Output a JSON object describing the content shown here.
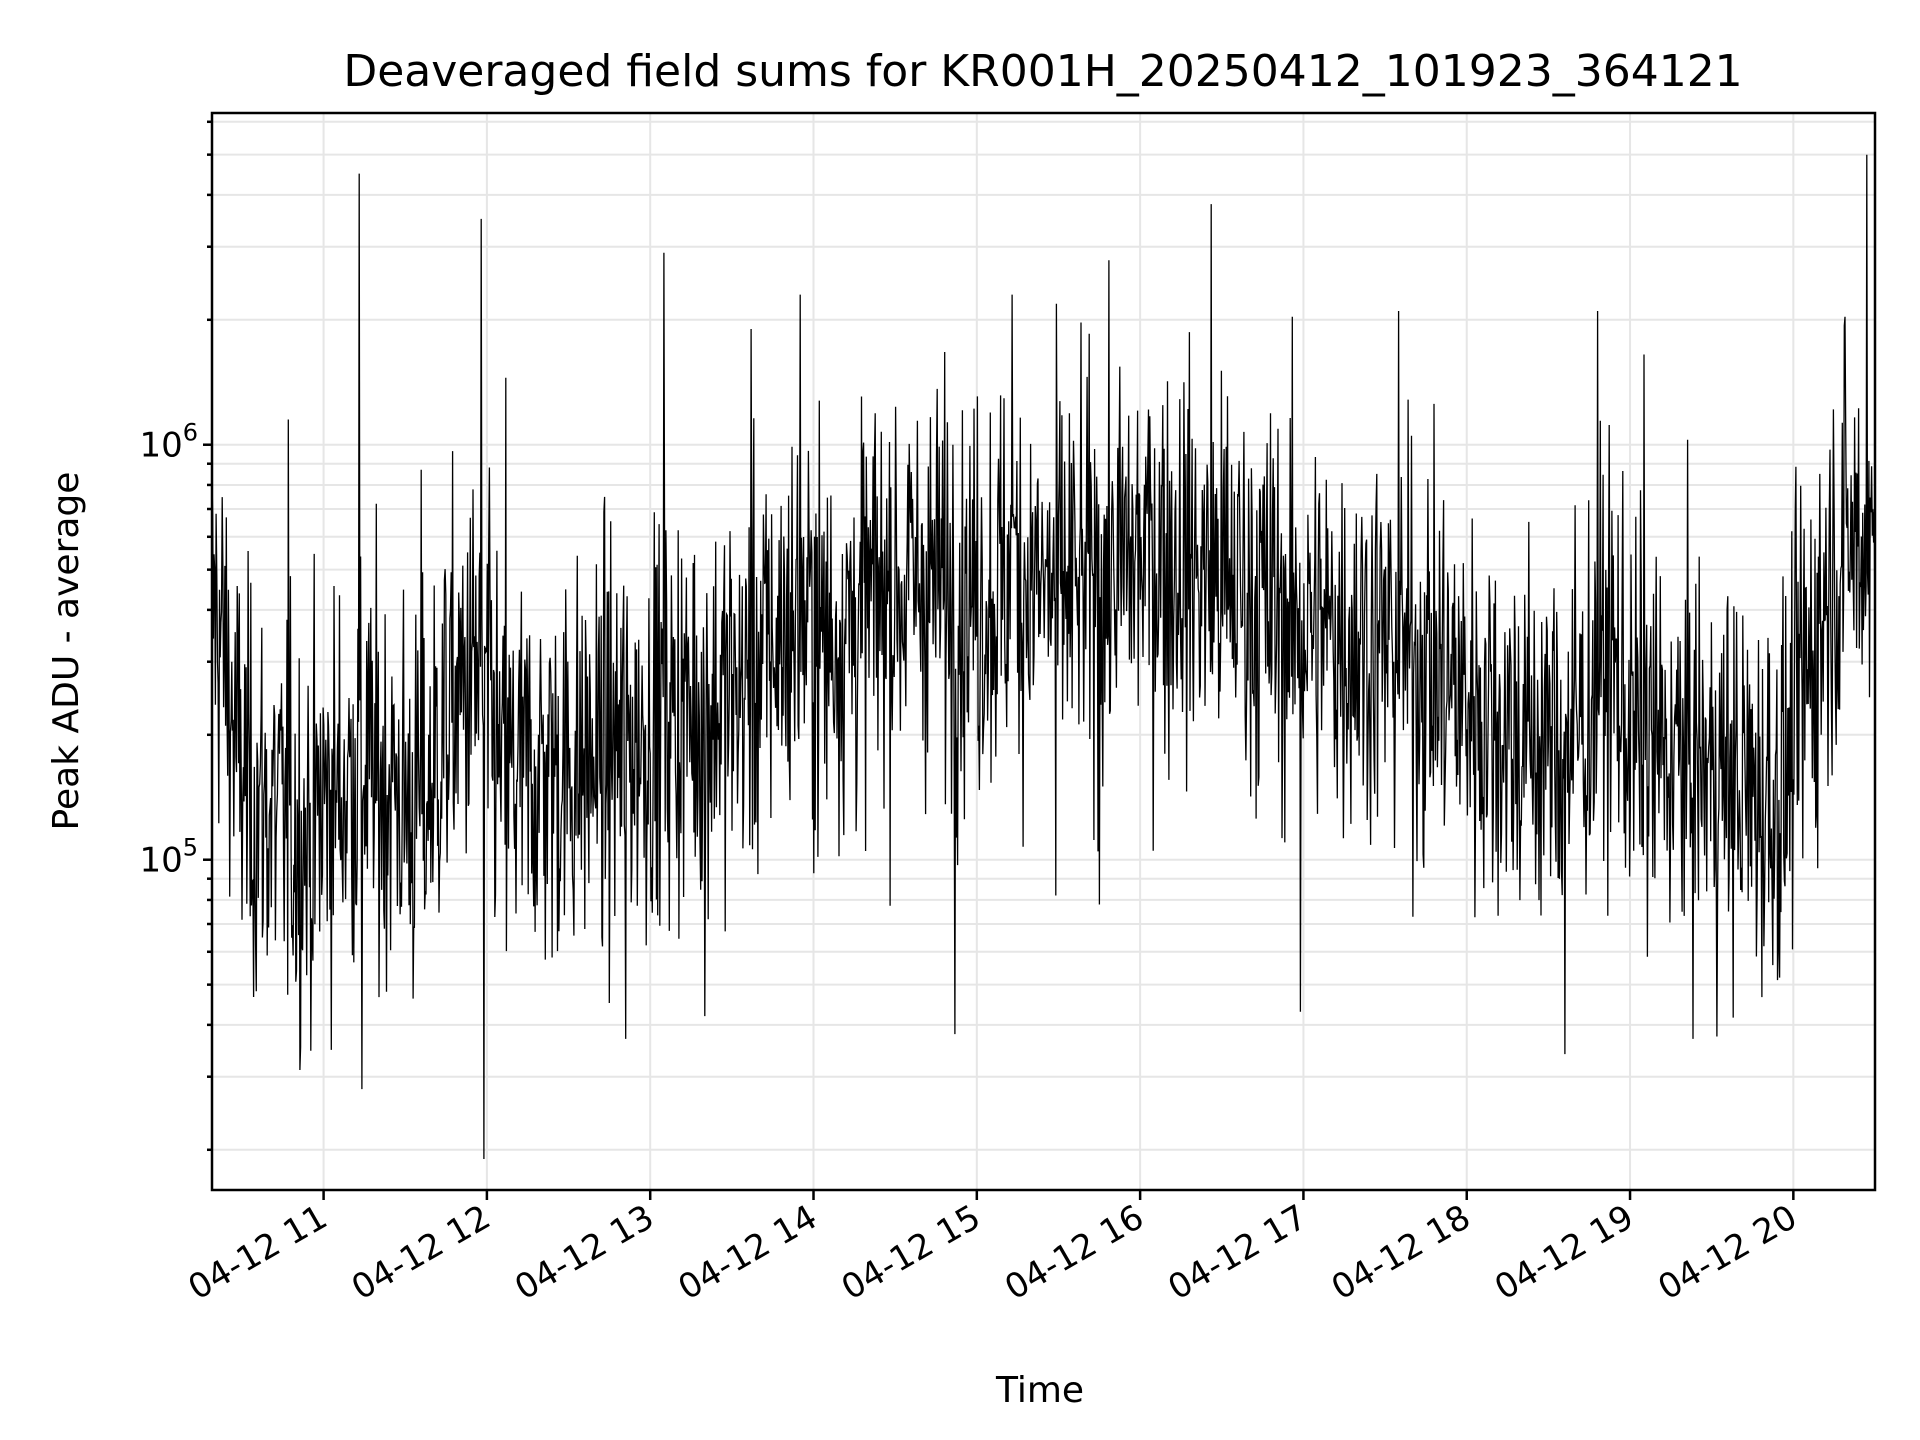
{
  "chart_data": {
    "type": "line",
    "title": "Deaveraged field sums for KR001H_20250412_101923_364121",
    "xlabel": "Time",
    "ylabel": "Peak ADU - average",
    "yscale": "log",
    "ylim": [
      16000,
      6300000
    ],
    "xlim": [
      "04-12 10:19",
      "04-12 20:30"
    ],
    "grid": true,
    "x_ticks": [
      "04-12 11",
      "04-12 12",
      "04-12 13",
      "04-12 14",
      "04-12 15",
      "04-12 16",
      "04-12 17",
      "04-12 18",
      "04-12 19",
      "04-12 20"
    ],
    "y_ticks": [
      {
        "base": "10",
        "exp": "5",
        "value": 100000
      },
      {
        "base": "10",
        "exp": "6",
        "value": 1000000
      }
    ],
    "series": [
      {
        "color": "#000000",
        "points": [
          [
            "04-12 10:20",
            400000
          ],
          [
            "04-12 10:24",
            300000
          ],
          [
            "04-12 10:28",
            180000
          ],
          [
            "04-12 10:33",
            140000
          ],
          [
            "04-12 10:40",
            130000
          ],
          [
            "04-12 10:48",
            120000
          ],
          [
            "04-12 10:55",
            110000
          ],
          [
            "04-12 11:00",
            140000
          ],
          [
            "04-12 11:08",
            150000
          ],
          [
            "04-12 11:14",
            175000
          ],
          [
            "04-12 11:20",
            155000
          ],
          [
            "04-12 11:26",
            150000
          ],
          [
            "04-12 11:32",
            130000
          ],
          [
            "04-12 11:38",
            140000
          ],
          [
            "04-12 11:45",
            220000
          ],
          [
            "04-12 11:52",
            260000
          ],
          [
            "04-12 11:58",
            300000
          ],
          [
            "04-12 12:05",
            160000
          ],
          [
            "04-12 12:15",
            160000
          ],
          [
            "04-12 12:25",
            165000
          ],
          [
            "04-12 12:35",
            170000
          ],
          [
            "04-12 12:45",
            185000
          ],
          [
            "04-12 12:55",
            195000
          ],
          [
            "04-12 13:05",
            220000
          ],
          [
            "04-12 13:15",
            230000
          ],
          [
            "04-12 13:25",
            240000
          ],
          [
            "04-12 13:35",
            260000
          ],
          [
            "04-12 13:45",
            330000
          ],
          [
            "04-12 13:55",
            380000
          ],
          [
            "04-12 14:05",
            340000
          ],
          [
            "04-12 14:15",
            380000
          ],
          [
            "04-12 14:25",
            440000
          ],
          [
            "04-12 14:35",
            460000
          ],
          [
            "04-12 14:45",
            470000
          ],
          [
            "04-12 14:55",
            430000
          ],
          [
            "04-12 15:05",
            440000
          ],
          [
            "04-12 15:15",
            480000
          ],
          [
            "04-12 15:25",
            450000
          ],
          [
            "04-12 15:35",
            450000
          ],
          [
            "04-12 15:45",
            470000
          ],
          [
            "04-12 15:55",
            520000
          ],
          [
            "04-12 16:05",
            560000
          ],
          [
            "04-12 16:15",
            520000
          ],
          [
            "04-12 16:25",
            480000
          ],
          [
            "04-12 16:35",
            460000
          ],
          [
            "04-12 16:45",
            420000
          ],
          [
            "04-12 16:55",
            380000
          ],
          [
            "04-12 17:05",
            360000
          ],
          [
            "04-12 17:15",
            350000
          ],
          [
            "04-12 17:25",
            340000
          ],
          [
            "04-12 17:35",
            320000
          ],
          [
            "04-12 17:45",
            300000
          ],
          [
            "04-12 17:55",
            260000
          ],
          [
            "04-12 18:05",
            230000
          ],
          [
            "04-12 18:15",
            210000
          ],
          [
            "04-12 18:25",
            190000
          ],
          [
            "04-12 18:35",
            185000
          ],
          [
            "04-12 18:45",
            230000
          ],
          [
            "04-12 18:52",
            320000
          ],
          [
            "04-12 19:00",
            210000
          ],
          [
            "04-12 19:10",
            180000
          ],
          [
            "04-12 19:20",
            175000
          ],
          [
            "04-12 19:30",
            165000
          ],
          [
            "04-12 19:40",
            150000
          ],
          [
            "04-12 19:50",
            140000
          ],
          [
            "04-12 19:57",
            150000
          ],
          [
            "04-12 20:03",
            260000
          ],
          [
            "04-12 20:08",
            320000
          ],
          [
            "04-12 20:13",
            480000
          ],
          [
            "04-12 20:20",
            600000
          ],
          [
            "04-12 20:28",
            560000
          ]
        ],
        "spikes": [
          [
            "04-12 10:47",
            1150000
          ],
          [
            "04-12 11:13",
            4500000
          ],
          [
            "04-12 11:14",
            28000
          ],
          [
            "04-12 11:36",
            870000
          ],
          [
            "04-12 11:58",
            3500000
          ],
          [
            "04-12 11:59",
            19000
          ],
          [
            "04-12 12:07",
            1450000
          ],
          [
            "04-12 12:51",
            37000
          ],
          [
            "04-12 13:05",
            2900000
          ],
          [
            "04-12 13:20",
            42000
          ],
          [
            "04-12 13:37",
            1900000
          ],
          [
            "04-12 13:55",
            2300000
          ],
          [
            "04-12 14:52",
            38000
          ],
          [
            "04-12 15:13",
            2300000
          ],
          [
            "04-12 15:29",
            82000
          ],
          [
            "04-12 15:45",
            78000
          ],
          [
            "04-12 16:26",
            3800000
          ],
          [
            "04-12 16:59",
            43000
          ],
          [
            "04-12 17:35",
            2100000
          ],
          [
            "04-12 18:36",
            34000
          ],
          [
            "04-12 18:48",
            2100000
          ],
          [
            "04-12 19:05",
            1650000
          ],
          [
            "04-12 19:55",
            52000
          ],
          [
            "04-12 20:27",
            5000000
          ]
        ]
      }
    ]
  }
}
